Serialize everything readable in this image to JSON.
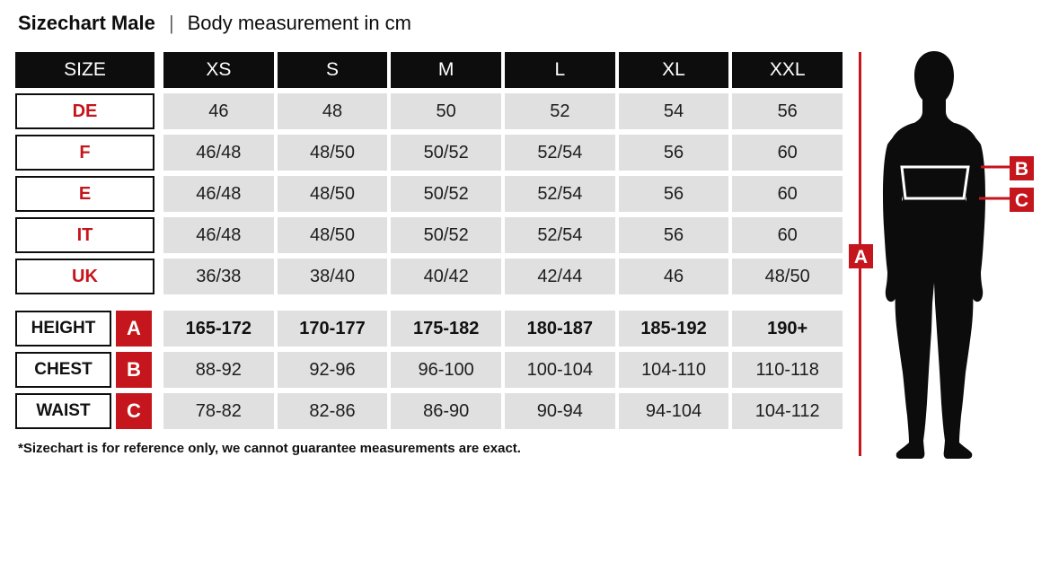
{
  "title": {
    "main": "Sizechart Male",
    "separator": "|",
    "subtitle": "Body measurement in cm"
  },
  "table": {
    "header": {
      "size_label": "SIZE",
      "columns": [
        "XS",
        "S",
        "M",
        "L",
        "XL",
        "XXL"
      ]
    },
    "size_rows": [
      {
        "label": "DE",
        "values": [
          "46",
          "48",
          "50",
          "52",
          "54",
          "56"
        ]
      },
      {
        "label": "F",
        "values": [
          "46/48",
          "48/50",
          "50/52",
          "52/54",
          "56",
          "60"
        ]
      },
      {
        "label": "E",
        "values": [
          "46/48",
          "48/50",
          "50/52",
          "52/54",
          "56",
          "60"
        ]
      },
      {
        "label": "IT",
        "values": [
          "46/48",
          "48/50",
          "50/52",
          "52/54",
          "56",
          "60"
        ]
      },
      {
        "label": "UK",
        "values": [
          "36/38",
          "38/40",
          "40/42",
          "42/44",
          "46",
          "48/50"
        ]
      }
    ],
    "measure_rows": [
      {
        "label": "HEIGHT",
        "marker": "A",
        "bold": true,
        "values": [
          "165-172",
          "170-177",
          "175-182",
          "180-187",
          "185-192",
          "190+"
        ]
      },
      {
        "label": "CHEST",
        "marker": "B",
        "bold": false,
        "values": [
          "88-92",
          "92-96",
          "96-100",
          "100-104",
          "104-110",
          "110-118"
        ]
      },
      {
        "label": "WAIST",
        "marker": "C",
        "bold": false,
        "values": [
          "78-82",
          "82-86",
          "86-90",
          "90-94",
          "94-104",
          "104-112"
        ]
      }
    ]
  },
  "figure": {
    "markers": [
      "A",
      "B",
      "C"
    ]
  },
  "footnote": "*Sizechart is for reference only, we cannot guarantee measurements are exact.",
  "colors": {
    "accent_red": "#c4161c",
    "cell_gray": "#e0e0e0",
    "ink_black": "#0d0d0d"
  }
}
